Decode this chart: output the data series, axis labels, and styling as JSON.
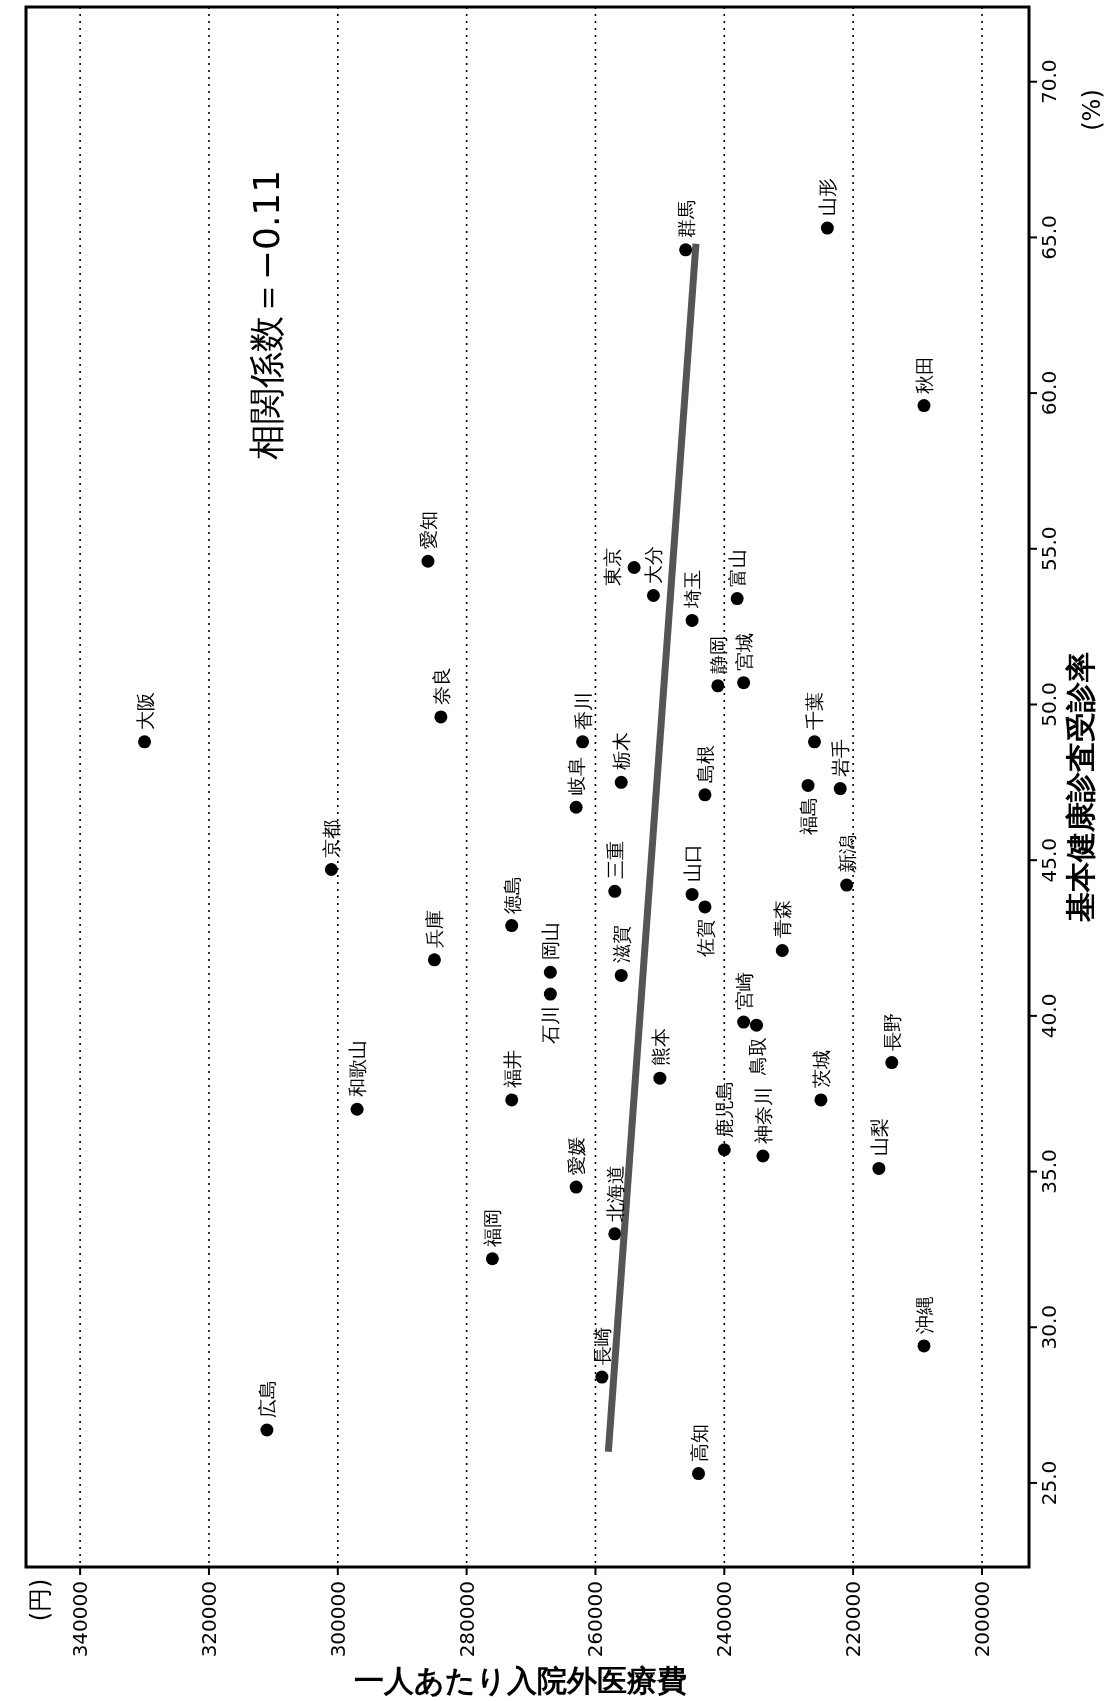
{
  "chart_data": {
    "type": "scatter",
    "xlabel": "一人あたり入院外医療費",
    "ylabel": "基本健康診査受診率",
    "xlim": [
      348400,
      192700
    ],
    "ylim": [
      22.3,
      72.4
    ],
    "xticks": [
      340000,
      320000,
      300000,
      280000,
      260000,
      240000,
      220000,
      200000
    ],
    "yticks": [
      {
        "value": 25,
        "label": "25.0"
      },
      {
        "value": 30,
        "label": "30.0"
      },
      {
        "value": 35,
        "label": "35.0"
      },
      {
        "value": 40,
        "label": "40.0"
      },
      {
        "value": 45,
        "label": "45.0"
      },
      {
        "value": 50,
        "label": "50.0"
      },
      {
        "value": 55,
        "label": "55.0"
      },
      {
        "value": 60,
        "label": "60.0"
      },
      {
        "value": 65,
        "label": "65.0"
      },
      {
        "value": 70,
        "label": "70.0"
      }
    ],
    "grid": "x",
    "marker": "circle",
    "series": [
      {
        "color": "#000000",
        "x": [
          311000,
          244000,
          259000,
          209000,
          276000,
          257000,
          263000,
          216000,
          234000,
          240000,
          297000,
          273000,
          225000,
          250000,
          214000,
          237000,
          235000,
          267000,
          267000,
          256000,
          285000,
          231000,
          273000,
          243000,
          245000,
          257000,
          301000,
          221000,
          263000,
          243000,
          256000,
          222000,
          227000,
          262000,
          226000,
          330000,
          284000,
          237000,
          241000,
          245000,
          251000,
          238000,
          254000,
          286000,
          209000,
          246000,
          224000
        ],
        "values": [
          26.7,
          25.3,
          28.4,
          29.4,
          32.2,
          33.0,
          34.5,
          35.1,
          35.5,
          35.7,
          37.0,
          37.3,
          37.3,
          38.0,
          38.5,
          39.8,
          39.7,
          40.7,
          41.4,
          41.3,
          41.8,
          42.1,
          42.9,
          43.5,
          43.9,
          44.0,
          44.7,
          44.2,
          46.7,
          47.1,
          47.5,
          47.3,
          47.4,
          48.8,
          48.8,
          48.8,
          49.6,
          50.7,
          50.6,
          52.7,
          53.5,
          53.4,
          54.4,
          54.6,
          59.6,
          64.6,
          65.3
        ]
      },
      {
        "type": "line",
        "color": "#555555",
        "marker": "none",
        "x": [
          258000,
          244400
        ],
        "values": [
          26.0,
          64.8
        ]
      }
    ],
    "annotations": [
      "相関係数＝−0.11",
      "(円)",
      "(%)",
      {
        "text": "広島",
        "x": 311000,
        "y": 26.7
      },
      {
        "text": "高知",
        "x": 244000,
        "y": 25.3
      },
      {
        "text": "長崎",
        "x": 259000,
        "y": 28.4
      },
      {
        "text": "沖縄",
        "x": 209000,
        "y": 29.4
      },
      {
        "text": "福岡",
        "x": 276000,
        "y": 32.2
      },
      {
        "text": "北海道",
        "x": 257000,
        "y": 33.0
      },
      {
        "text": "愛媛",
        "x": 263000,
        "y": 34.5
      },
      {
        "text": "山梨",
        "x": 216000,
        "y": 35.1
      },
      {
        "text": "神奈川",
        "x": 234000,
        "y": 35.5
      },
      {
        "text": "鹿児島",
        "x": 240000,
        "y": 35.7
      },
      {
        "text": "和歌山",
        "x": 297000,
        "y": 37.0
      },
      {
        "text": "福井",
        "x": 273000,
        "y": 37.3
      },
      {
        "text": "茨城",
        "x": 225000,
        "y": 37.3
      },
      {
        "text": "熊本",
        "x": 250000,
        "y": 38.0
      },
      {
        "text": "長野",
        "x": 214000,
        "y": 38.5
      },
      {
        "text": "宮崎",
        "x": 237000,
        "y": 39.8
      },
      {
        "text": "鳥取",
        "x": 235000,
        "y": 39.7
      },
      {
        "text": "石川",
        "x": 267000,
        "y": 40.7
      },
      {
        "text": "岡山",
        "x": 267000,
        "y": 41.4
      },
      {
        "text": "滋賀",
        "x": 256000,
        "y": 41.3
      },
      {
        "text": "兵庫",
        "x": 285000,
        "y": 41.8
      },
      {
        "text": "青森",
        "x": 231000,
        "y": 42.1
      },
      {
        "text": "徳島",
        "x": 273000,
        "y": 42.9
      },
      {
        "text": "佐賀",
        "x": 243000,
        "y": 43.5
      },
      {
        "text": "山口",
        "x": 245000,
        "y": 43.9
      },
      {
        "text": "三重",
        "x": 257000,
        "y": 44.0
      },
      {
        "text": "京都",
        "x": 301000,
        "y": 44.7
      },
      {
        "text": "新潟",
        "x": 221000,
        "y": 44.2
      },
      {
        "text": "岐阜",
        "x": 263000,
        "y": 46.7
      },
      {
        "text": "島根",
        "x": 243000,
        "y": 47.1
      },
      {
        "text": "栃木",
        "x": 256000,
        "y": 47.5
      },
      {
        "text": "岩手",
        "x": 222000,
        "y": 47.3
      },
      {
        "text": "福島",
        "x": 227000,
        "y": 47.4
      },
      {
        "text": "香川",
        "x": 262000,
        "y": 48.8
      },
      {
        "text": "千葉",
        "x": 226000,
        "y": 48.8
      },
      {
        "text": "大阪",
        "x": 330000,
        "y": 48.8
      },
      {
        "text": "奈良",
        "x": 284000,
        "y": 49.6
      },
      {
        "text": "宮城",
        "x": 237000,
        "y": 50.7
      },
      {
        "text": "静岡",
        "x": 241000,
        "y": 50.6
      },
      {
        "text": "埼玉",
        "x": 245000,
        "y": 52.7
      },
      {
        "text": "大分",
        "x": 251000,
        "y": 53.5
      },
      {
        "text": "富山",
        "x": 238000,
        "y": 53.4
      },
      {
        "text": "東京",
        "x": 254000,
        "y": 54.4
      },
      {
        "text": "愛知",
        "x": 286000,
        "y": 54.6
      },
      {
        "text": "秋田",
        "x": 209000,
        "y": 59.6
      },
      {
        "text": "群馬",
        "x": 246000,
        "y": 64.6
      },
      {
        "text": "山形",
        "x": 224000,
        "y": 65.3
      }
    ]
  }
}
